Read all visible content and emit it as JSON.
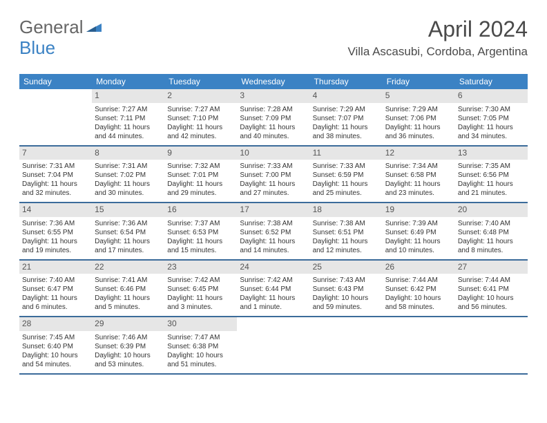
{
  "logo": {
    "word1": "General",
    "word2": "Blue",
    "icon_color": "#3b82c4"
  },
  "header": {
    "month": "April 2024",
    "location": "Villa Ascasubi, Cordoba, Argentina"
  },
  "colors": {
    "header_bg": "#3b82c4",
    "header_text": "#ffffff",
    "daynum_bg": "#e6e6e6",
    "row_border": "#3b6b9a",
    "text": "#333333"
  },
  "font": {
    "family": "Arial",
    "title_size": 32,
    "location_size": 17,
    "dayheader_size": 12,
    "body_size": 10
  },
  "day_headers": [
    "Sunday",
    "Monday",
    "Tuesday",
    "Wednesday",
    "Thursday",
    "Friday",
    "Saturday"
  ],
  "weeks": [
    [
      {
        "num": "",
        "sunrise": "",
        "sunset": "",
        "daylight": ""
      },
      {
        "num": "1",
        "sunrise": "Sunrise: 7:27 AM",
        "sunset": "Sunset: 7:11 PM",
        "daylight": "Daylight: 11 hours and 44 minutes."
      },
      {
        "num": "2",
        "sunrise": "Sunrise: 7:27 AM",
        "sunset": "Sunset: 7:10 PM",
        "daylight": "Daylight: 11 hours and 42 minutes."
      },
      {
        "num": "3",
        "sunrise": "Sunrise: 7:28 AM",
        "sunset": "Sunset: 7:09 PM",
        "daylight": "Daylight: 11 hours and 40 minutes."
      },
      {
        "num": "4",
        "sunrise": "Sunrise: 7:29 AM",
        "sunset": "Sunset: 7:07 PM",
        "daylight": "Daylight: 11 hours and 38 minutes."
      },
      {
        "num": "5",
        "sunrise": "Sunrise: 7:29 AM",
        "sunset": "Sunset: 7:06 PM",
        "daylight": "Daylight: 11 hours and 36 minutes."
      },
      {
        "num": "6",
        "sunrise": "Sunrise: 7:30 AM",
        "sunset": "Sunset: 7:05 PM",
        "daylight": "Daylight: 11 hours and 34 minutes."
      }
    ],
    [
      {
        "num": "7",
        "sunrise": "Sunrise: 7:31 AM",
        "sunset": "Sunset: 7:04 PM",
        "daylight": "Daylight: 11 hours and 32 minutes."
      },
      {
        "num": "8",
        "sunrise": "Sunrise: 7:31 AM",
        "sunset": "Sunset: 7:02 PM",
        "daylight": "Daylight: 11 hours and 30 minutes."
      },
      {
        "num": "9",
        "sunrise": "Sunrise: 7:32 AM",
        "sunset": "Sunset: 7:01 PM",
        "daylight": "Daylight: 11 hours and 29 minutes."
      },
      {
        "num": "10",
        "sunrise": "Sunrise: 7:33 AM",
        "sunset": "Sunset: 7:00 PM",
        "daylight": "Daylight: 11 hours and 27 minutes."
      },
      {
        "num": "11",
        "sunrise": "Sunrise: 7:33 AM",
        "sunset": "Sunset: 6:59 PM",
        "daylight": "Daylight: 11 hours and 25 minutes."
      },
      {
        "num": "12",
        "sunrise": "Sunrise: 7:34 AM",
        "sunset": "Sunset: 6:58 PM",
        "daylight": "Daylight: 11 hours and 23 minutes."
      },
      {
        "num": "13",
        "sunrise": "Sunrise: 7:35 AM",
        "sunset": "Sunset: 6:56 PM",
        "daylight": "Daylight: 11 hours and 21 minutes."
      }
    ],
    [
      {
        "num": "14",
        "sunrise": "Sunrise: 7:36 AM",
        "sunset": "Sunset: 6:55 PM",
        "daylight": "Daylight: 11 hours and 19 minutes."
      },
      {
        "num": "15",
        "sunrise": "Sunrise: 7:36 AM",
        "sunset": "Sunset: 6:54 PM",
        "daylight": "Daylight: 11 hours and 17 minutes."
      },
      {
        "num": "16",
        "sunrise": "Sunrise: 7:37 AM",
        "sunset": "Sunset: 6:53 PM",
        "daylight": "Daylight: 11 hours and 15 minutes."
      },
      {
        "num": "17",
        "sunrise": "Sunrise: 7:38 AM",
        "sunset": "Sunset: 6:52 PM",
        "daylight": "Daylight: 11 hours and 14 minutes."
      },
      {
        "num": "18",
        "sunrise": "Sunrise: 7:38 AM",
        "sunset": "Sunset: 6:51 PM",
        "daylight": "Daylight: 11 hours and 12 minutes."
      },
      {
        "num": "19",
        "sunrise": "Sunrise: 7:39 AM",
        "sunset": "Sunset: 6:49 PM",
        "daylight": "Daylight: 11 hours and 10 minutes."
      },
      {
        "num": "20",
        "sunrise": "Sunrise: 7:40 AM",
        "sunset": "Sunset: 6:48 PM",
        "daylight": "Daylight: 11 hours and 8 minutes."
      }
    ],
    [
      {
        "num": "21",
        "sunrise": "Sunrise: 7:40 AM",
        "sunset": "Sunset: 6:47 PM",
        "daylight": "Daylight: 11 hours and 6 minutes."
      },
      {
        "num": "22",
        "sunrise": "Sunrise: 7:41 AM",
        "sunset": "Sunset: 6:46 PM",
        "daylight": "Daylight: 11 hours and 5 minutes."
      },
      {
        "num": "23",
        "sunrise": "Sunrise: 7:42 AM",
        "sunset": "Sunset: 6:45 PM",
        "daylight": "Daylight: 11 hours and 3 minutes."
      },
      {
        "num": "24",
        "sunrise": "Sunrise: 7:42 AM",
        "sunset": "Sunset: 6:44 PM",
        "daylight": "Daylight: 11 hours and 1 minute."
      },
      {
        "num": "25",
        "sunrise": "Sunrise: 7:43 AM",
        "sunset": "Sunset: 6:43 PM",
        "daylight": "Daylight: 10 hours and 59 minutes."
      },
      {
        "num": "26",
        "sunrise": "Sunrise: 7:44 AM",
        "sunset": "Sunset: 6:42 PM",
        "daylight": "Daylight: 10 hours and 58 minutes."
      },
      {
        "num": "27",
        "sunrise": "Sunrise: 7:44 AM",
        "sunset": "Sunset: 6:41 PM",
        "daylight": "Daylight: 10 hours and 56 minutes."
      }
    ],
    [
      {
        "num": "28",
        "sunrise": "Sunrise: 7:45 AM",
        "sunset": "Sunset: 6:40 PM",
        "daylight": "Daylight: 10 hours and 54 minutes."
      },
      {
        "num": "29",
        "sunrise": "Sunrise: 7:46 AM",
        "sunset": "Sunset: 6:39 PM",
        "daylight": "Daylight: 10 hours and 53 minutes."
      },
      {
        "num": "30",
        "sunrise": "Sunrise: 7:47 AM",
        "sunset": "Sunset: 6:38 PM",
        "daylight": "Daylight: 10 hours and 51 minutes."
      },
      {
        "num": "",
        "sunrise": "",
        "sunset": "",
        "daylight": ""
      },
      {
        "num": "",
        "sunrise": "",
        "sunset": "",
        "daylight": ""
      },
      {
        "num": "",
        "sunrise": "",
        "sunset": "",
        "daylight": ""
      },
      {
        "num": "",
        "sunrise": "",
        "sunset": "",
        "daylight": ""
      }
    ]
  ]
}
